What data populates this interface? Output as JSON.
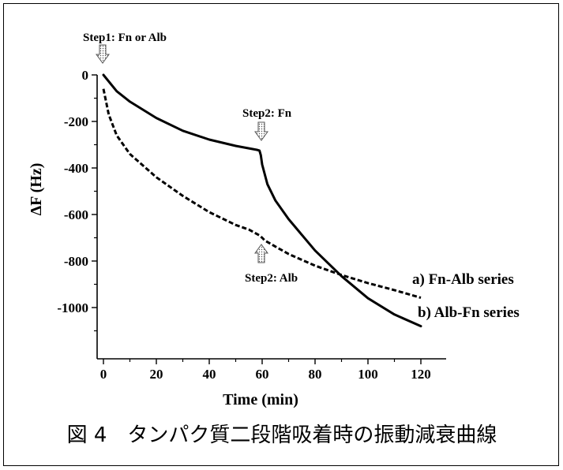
{
  "chart_data": {
    "type": "line",
    "xlabel": "Time (min)",
    "ylabel": "ΔF (Hz)",
    "xlim": [
      -3,
      130
    ],
    "ylim": [
      -1140,
      0
    ],
    "x_ticks": [
      0,
      20,
      40,
      60,
      80,
      100,
      120
    ],
    "y_ticks": [
      0,
      -200,
      -400,
      -600,
      -800,
      -1000
    ],
    "series": [
      {
        "name": "a) Fn-Alb series",
        "style": "solid",
        "x": [
          0,
          5,
          10,
          20,
          30,
          40,
          50,
          58,
          59,
          59.5,
          60,
          62,
          65,
          70,
          80,
          90,
          100,
          110,
          120
        ],
        "y": [
          0,
          -70,
          -115,
          -185,
          -240,
          -278,
          -305,
          -322,
          -325,
          -345,
          -385,
          -470,
          -540,
          -620,
          -755,
          -865,
          -960,
          -1030,
          -1080
        ]
      },
      {
        "name": "b) Alb-Fn series",
        "style": "dashed",
        "x": [
          0,
          2,
          5,
          10,
          20,
          30,
          40,
          50,
          55,
          59,
          60,
          61,
          65,
          70,
          80,
          90,
          100,
          110,
          120
        ],
        "y": [
          -60,
          -170,
          -260,
          -340,
          -440,
          -520,
          -590,
          -645,
          -665,
          -690,
          -700,
          -712,
          -738,
          -770,
          -820,
          -860,
          -895,
          -925,
          -958
        ]
      }
    ],
    "annotations": [
      {
        "text": "Step1: Fn or Alb",
        "x": 0,
        "arrow": "down"
      },
      {
        "text": "Step2: Fn",
        "x": 60,
        "arrow": "down"
      },
      {
        "text": "Step2: Alb",
        "x": 60,
        "arrow": "up"
      }
    ],
    "caption": "図 4　タンパク質二段階吸着時の振動減衰曲線"
  }
}
